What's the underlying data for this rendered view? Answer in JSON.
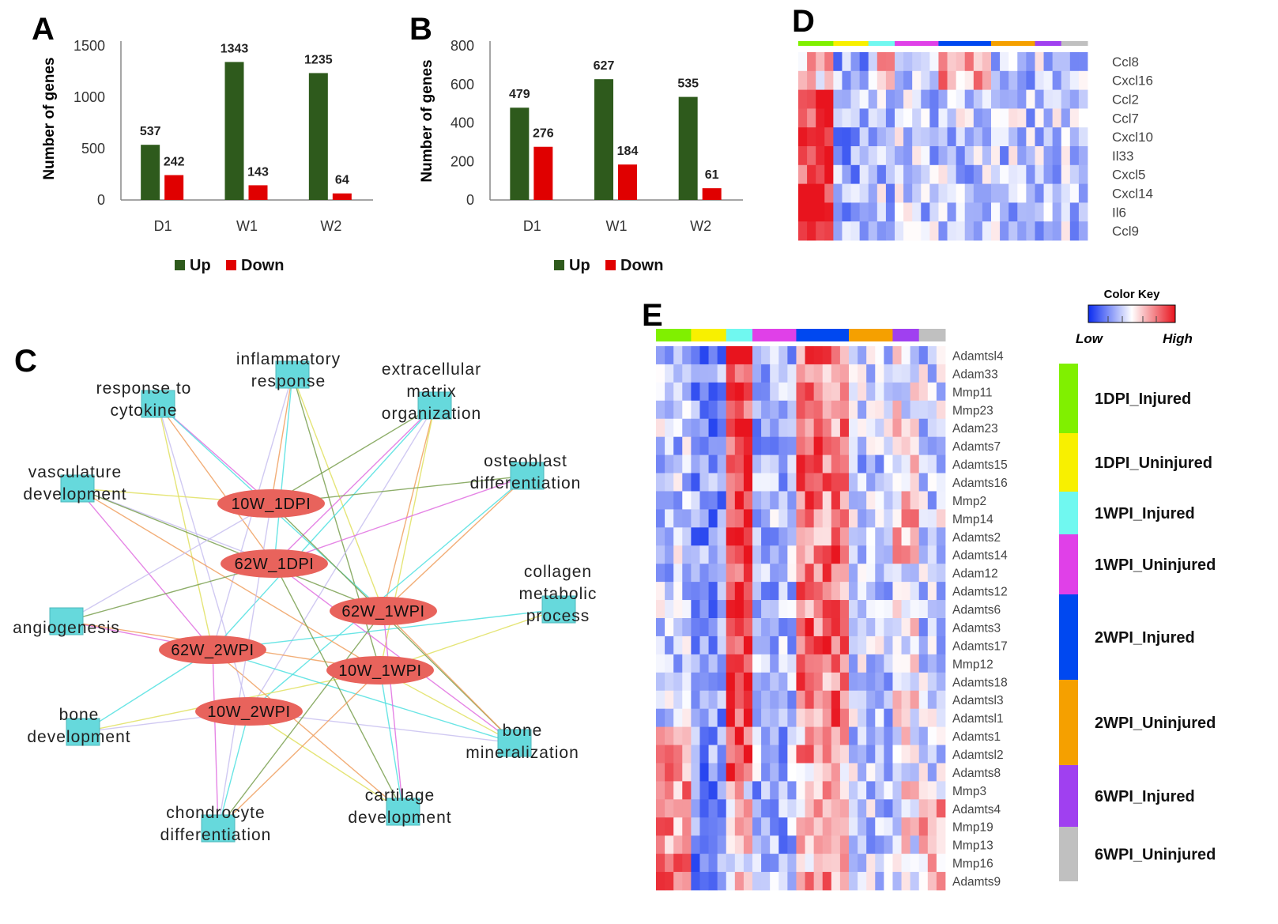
{
  "panels": {
    "A": "A",
    "B": "B",
    "C": "C",
    "D": "D",
    "E": "E"
  },
  "chart_data": [
    {
      "id": "A",
      "type": "bar",
      "title": "",
      "ylabel": "Number of genes",
      "xlabel": "",
      "categories": [
        "D1",
        "W1",
        "W2"
      ],
      "series": [
        {
          "name": "Up",
          "color": "#2e5a1c",
          "values": [
            537,
            1343,
            1235
          ]
        },
        {
          "name": "Down",
          "color": "#e00000",
          "values": [
            242,
            143,
            64
          ]
        }
      ],
      "ylim": [
        0,
        1500
      ],
      "yticks": [
        "0",
        "500",
        "1000",
        "1500"
      ],
      "ytick_values": [
        0,
        500,
        1000,
        1500
      ],
      "data_labels": [
        [
          "537",
          "1343",
          "1235"
        ],
        [
          "242",
          "143",
          "64"
        ]
      ],
      "legend": [
        "Up",
        "Down"
      ],
      "legend_position": "bottom"
    },
    {
      "id": "B",
      "type": "bar",
      "title": "",
      "ylabel": "Number of genes",
      "xlabel": "",
      "categories": [
        "D1",
        "W1",
        "W2"
      ],
      "series": [
        {
          "name": "Up",
          "color": "#2e5a1c",
          "values": [
            479,
            627,
            535
          ]
        },
        {
          "name": "Down",
          "color": "#e00000",
          "values": [
            276,
            184,
            61
          ]
        }
      ],
      "ylim": [
        0,
        800
      ],
      "yticks": [
        "0",
        "200",
        "400",
        "600",
        "800"
      ],
      "ytick_values": [
        0,
        200,
        400,
        600,
        800
      ],
      "data_labels": [
        [
          "479",
          "627",
          "535"
        ],
        [
          "276",
          "184",
          "61"
        ]
      ],
      "legend": [
        "Up",
        "Down"
      ],
      "legend_position": "bottom"
    },
    {
      "id": "D",
      "type": "heatmap",
      "title": "",
      "rows": [
        "Ccl8",
        "Cxcl16",
        "Ccl2",
        "Ccl7",
        "Cxcl10",
        "Il33",
        "Cxcl5",
        "Cxcl14",
        "Il6",
        "Ccl9"
      ],
      "column_groups": [
        "1DPI_Injured",
        "1DPI_Uninjured",
        "1WPI_Injured",
        "1WPI_Uninjured",
        "2WPI_Injured",
        "2WPI_Uninjured",
        "6WPI_Injured",
        "6WPI_Uninjured"
      ]
    },
    {
      "id": "E",
      "type": "heatmap",
      "title": "",
      "rows": [
        "Adamtsl4",
        "Adam33",
        "Mmp11",
        "Mmp23",
        "Adam23",
        "Adamts7",
        "Adamts15",
        "Adamts16",
        "Mmp2",
        "Mmp14",
        "Adamts2",
        "Adamts14",
        "Adam12",
        "Adamts12",
        "Adamts6",
        "Adamts3",
        "Adamts17",
        "Mmp12",
        "Adamts18",
        "Adamtsl3",
        "Adamtsl1",
        "Adamts1",
        "Adamtsl2",
        "Adamts8",
        "Mmp3",
        "Adamts4",
        "Mmp19",
        "Mmp13",
        "Mmp16",
        "Adamts9"
      ],
      "column_groups": [
        "1DPI_Injured",
        "1DPI_Uninjured",
        "1WPI_Injured",
        "1WPI_Uninjured",
        "2WPI_Injured",
        "2WPI_Uninjured",
        "6WPI_Injured",
        "6WPI_Uninjured"
      ],
      "color_key": {
        "title": "Color Key",
        "low": "Low",
        "high": "High"
      }
    }
  ],
  "groups": [
    {
      "name": "1DPI_Injured",
      "color": "#80f000"
    },
    {
      "name": "1DPI_Uninjured",
      "color": "#f8f000"
    },
    {
      "name": "1WPI_Injured",
      "color": "#70f8f0"
    },
    {
      "name": "1WPI_Uninjured",
      "color": "#e040e8"
    },
    {
      "name": "2WPI_Injured",
      "color": "#0048f0"
    },
    {
      "name": "2WPI_Uninjured",
      "color": "#f5a000"
    },
    {
      "name": "6WPI_Injured",
      "color": "#a040f0"
    },
    {
      "name": "6WPI_Uninjured",
      "color": "#c0c0c0"
    }
  ],
  "network": {
    "terms": [
      {
        "id": "inflammatory",
        "lines": [
          "inflammatory",
          "response"
        ]
      },
      {
        "id": "cytokine",
        "lines": [
          "response to",
          "cytokine"
        ]
      },
      {
        "id": "ecm",
        "lines": [
          "extracellular",
          "matrix",
          "organization"
        ]
      },
      {
        "id": "osteoblast",
        "lines": [
          "osteoblast",
          "differentiation"
        ]
      },
      {
        "id": "vasculature",
        "lines": [
          "vasculature",
          "development"
        ]
      },
      {
        "id": "collagen",
        "lines": [
          "collagen",
          "metabolic",
          "process"
        ]
      },
      {
        "id": "angiogenesis",
        "lines": [
          "angiogenesis"
        ]
      },
      {
        "id": "bone-dev",
        "lines": [
          "bone",
          "development"
        ]
      },
      {
        "id": "bone-min",
        "lines": [
          "bone",
          "mineralization"
        ]
      },
      {
        "id": "cartilage",
        "lines": [
          "cartilage",
          "development"
        ]
      },
      {
        "id": "chondrocyte",
        "lines": [
          "chondrocyte",
          "differentiation"
        ]
      }
    ],
    "conditions": [
      "10W_1DPI",
      "62W_1DPI",
      "62W_1WPI",
      "62W_2WPI",
      "10W_1WPI",
      "10W_2WPI"
    ],
    "edge_colors": [
      "#f0a060",
      "#50e0e0",
      "#e0e060",
      "#c8c0f0",
      "#7aa050",
      "#e070e0"
    ]
  }
}
